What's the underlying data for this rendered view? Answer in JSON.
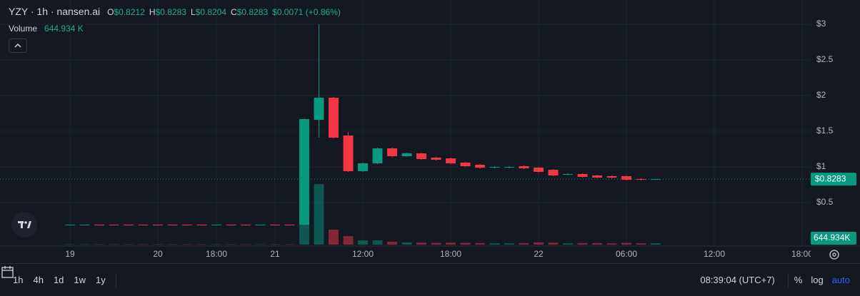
{
  "chart_data": {
    "type": "candlestick",
    "title": "YZY · 1h · nansen.ai",
    "ohlc_legend": [
      {
        "key": "O",
        "value": "$0.8212"
      },
      {
        "key": "H",
        "value": "$0.8283"
      },
      {
        "key": "L",
        "value": "$0.8204"
      },
      {
        "key": "C",
        "value": "$0.8283"
      }
    ],
    "change": "$0.0071 (+0.86%)",
    "volume_title": "Volume",
    "volume_legend": "644.934 K",
    "last_price_label": "$0.8283",
    "last_volume_label": "644.934K",
    "categories": [
      "19",
      null,
      null,
      null,
      null,
      null,
      "20",
      null,
      null,
      null,
      "18:00",
      null,
      null,
      null,
      "21",
      null,
      null,
      null,
      null,
      null,
      "12:00",
      null,
      null,
      null,
      null,
      null,
      "18:00",
      null,
      null,
      null,
      null,
      null,
      "22",
      null,
      null,
      null,
      null,
      null,
      "06:00",
      null,
      null,
      null,
      null,
      null,
      "12:00",
      null,
      null,
      null,
      null,
      null,
      "18:00"
    ],
    "open": [
      0.19,
      0.19,
      0.191,
      0.191,
      0.191,
      0.191,
      0.191,
      0.191,
      0.191,
      0.191,
      0.19,
      0.191,
      0.191,
      0.19,
      0.191,
      0.191,
      0.19,
      1.66,
      1.97,
      1.44,
      0.94,
      1.05,
      1.26,
      1.15,
      1.19,
      1.13,
      1.12,
      1.06,
      1.03,
      0.99,
      0.99,
      1.01,
      0.99,
      0.96,
      0.89,
      0.9,
      0.88,
      0.87,
      0.87,
      0.83,
      0.8212,
      null,
      null,
      null,
      null,
      null,
      null,
      null,
      null,
      null,
      null
    ],
    "high": [
      0.191,
      0.191,
      0.191,
      0.191,
      0.191,
      0.191,
      0.191,
      0.191,
      0.191,
      0.191,
      0.191,
      0.191,
      0.191,
      0.191,
      0.191,
      0.191,
      1.68,
      3.0,
      1.98,
      1.49,
      1.06,
      1.27,
      1.27,
      1.2,
      1.2,
      1.14,
      1.13,
      1.07,
      1.04,
      1.01,
      1.01,
      1.02,
      1.0,
      0.97,
      0.91,
      0.91,
      0.89,
      0.88,
      0.88,
      0.84,
      0.8283,
      null,
      null,
      null,
      null,
      null,
      null,
      null,
      null,
      null,
      null
    ],
    "low": [
      0.19,
      0.19,
      0.19,
      0.19,
      0.19,
      0.19,
      0.19,
      0.19,
      0.19,
      0.19,
      0.19,
      0.19,
      0.19,
      0.19,
      0.19,
      0.19,
      0.18,
      1.41,
      1.4,
      0.93,
      0.93,
      1.04,
      1.14,
      1.14,
      1.1,
      1.09,
      1.04,
      1.0,
      0.98,
      0.98,
      0.98,
      0.97,
      0.92,
      0.87,
      0.88,
      0.85,
      0.84,
      0.84,
      0.81,
      0.81,
      0.8204,
      null,
      null,
      null,
      null,
      null,
      null,
      null,
      null,
      null,
      null
    ],
    "close": [
      0.191,
      0.191,
      0.19,
      0.19,
      0.19,
      0.19,
      0.19,
      0.19,
      0.19,
      0.19,
      0.191,
      0.19,
      0.19,
      0.191,
      0.19,
      0.19,
      1.67,
      1.97,
      1.41,
      0.94,
      1.05,
      1.26,
      1.15,
      1.19,
      1.11,
      1.1,
      1.05,
      1.01,
      0.99,
      1.0,
      1.0,
      0.98,
      0.93,
      0.88,
      0.9,
      0.86,
      0.85,
      0.85,
      0.82,
      0.82,
      0.8283,
      null,
      null,
      null,
      null,
      null,
      null,
      null,
      null,
      null,
      null
    ],
    "volume": [
      150000,
      150000,
      150000,
      150000,
      150000,
      150000,
      150000,
      150000,
      150000,
      150000,
      150000,
      150000,
      150000,
      150000,
      150000,
      150000,
      14300000,
      27000000,
      6700000,
      3800000,
      1900000,
      1900000,
      1300000,
      1000000,
      900000,
      800000,
      900000,
      800000,
      700000,
      600000,
      600000,
      700000,
      1000000,
      900000,
      600000,
      700000,
      700000,
      600000,
      800000,
      600000,
      644934,
      null,
      null,
      null,
      null,
      null,
      null,
      null,
      null,
      null,
      null
    ],
    "ylim": [
      -0.11,
      3.34
    ],
    "yticks": [
      {
        "value": 0.5,
        "label": "$0.5"
      },
      {
        "value": 1,
        "label": "$1"
      },
      {
        "value": 1.5,
        "label": "$1.5"
      },
      {
        "value": 2,
        "label": "$2"
      },
      {
        "value": 2.5,
        "label": "$2.5"
      },
      {
        "value": 3,
        "label": "$3"
      }
    ],
    "volume_lim": [
      0,
      35000000
    ],
    "up_color": "#089981",
    "down_color": "#f23645",
    "grid": true
  },
  "toolbar": {
    "intervals": [
      "1h",
      "4h",
      "1d",
      "1w",
      "1y"
    ],
    "clock": "08:39:04 (UTC+7)",
    "options": [
      "%",
      "log",
      "auto"
    ]
  }
}
